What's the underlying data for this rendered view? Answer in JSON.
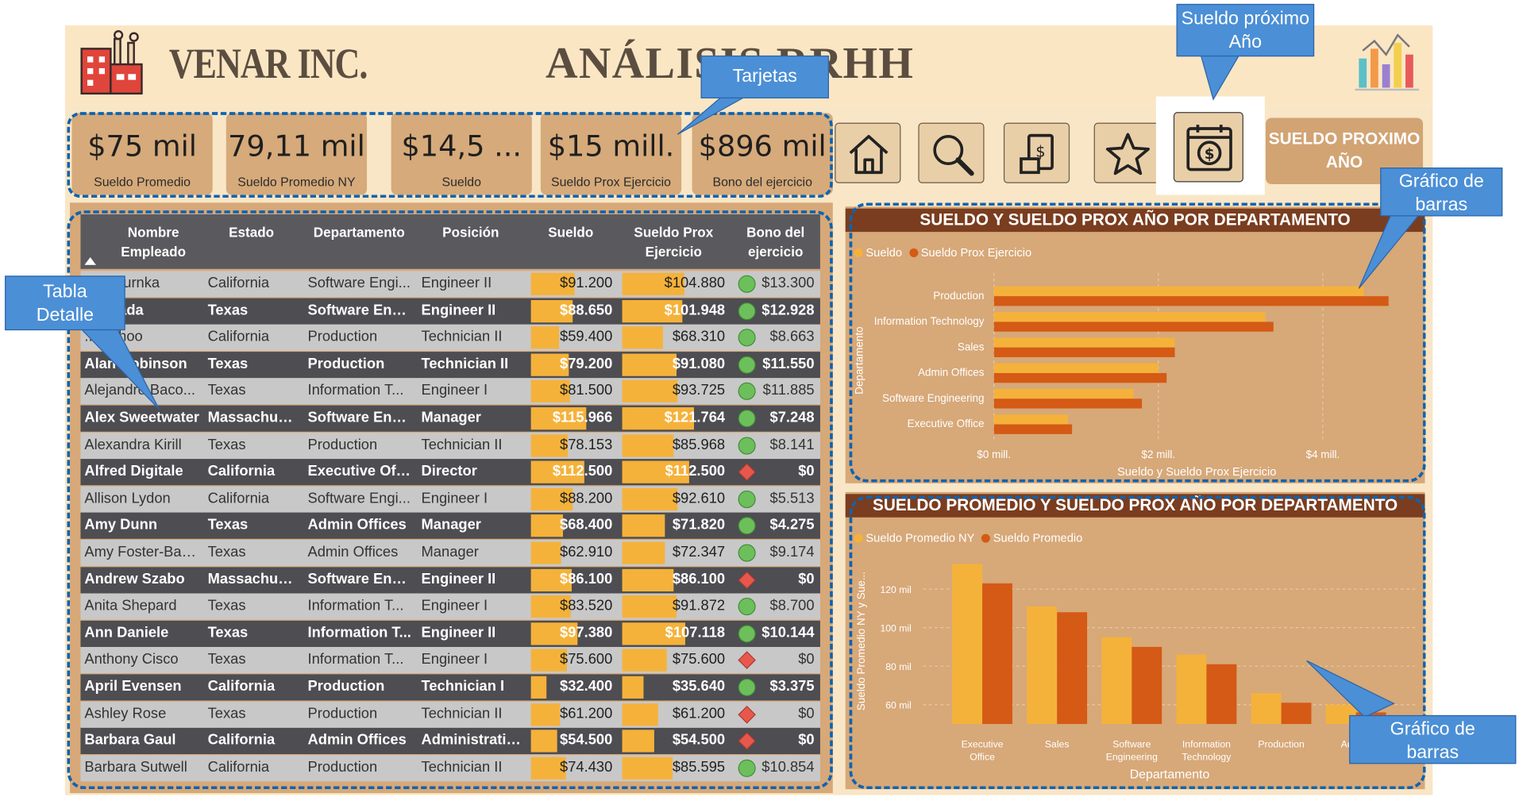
{
  "header": {
    "company": "VENAR INC.",
    "title": "ANÁLISIS   RRHH"
  },
  "cards": [
    {
      "value": "$75 mil",
      "label": "Sueldo Promedio"
    },
    {
      "value": "79,11 mil",
      "label": "Sueldo Promedio NY"
    },
    {
      "value": "$14,5 ...",
      "label": "Sueldo"
    },
    {
      "value": "$15 mill.",
      "label": "Sueldo Prox Ejercicio"
    },
    {
      "value": "$896 mil",
      "label": "Bono del ejercicio"
    }
  ],
  "nav": {
    "icons": [
      "home-icon",
      "search-icon",
      "document-money-icon",
      "star-icon",
      "calendar-dollar-icon"
    ],
    "sueldo_button": "SUELDO PROXIMO AÑO"
  },
  "callouts": {
    "tarjetas": "Tarjetas",
    "sueldo_proximo": "Sueldo próximo Año",
    "tabla": "Tabla Detalle",
    "grafico1": "Gráfico de barras",
    "grafico2": "Gráfico de barras"
  },
  "table": {
    "columns": [
      "Nombre Empleado",
      "Estado",
      "Departamento",
      "Posición",
      "Sueldo",
      "Sueldo Prox Ejercicio",
      "Bono del ejercicio"
    ],
    "rows": [
      {
        "name": "... Osturnka",
        "state": "California",
        "dept": "Software Engi...",
        "pos": "Engineer II",
        "sueldo": "$91.200",
        "sueldo_n": 91200,
        "prox": "$104.880",
        "prox_n": 104880,
        "status": "ok",
        "bono": "$13.300"
      },
      {
        "name": "... Saada",
        "state": "Texas",
        "dept": "Software Engi...",
        "pos": "Engineer II",
        "sueldo": "$88.650",
        "sueldo_n": 88650,
        "prox": "$101.948",
        "prox_n": 101948,
        "status": "ok",
        "bono": "$12.928"
      },
      {
        "name": "... Sahoo",
        "state": "California",
        "dept": "Production",
        "pos": "Technician II",
        "sueldo": "$59.400",
        "sueldo_n": 59400,
        "prox": "$68.310",
        "prox_n": 68310,
        "status": "ok",
        "bono": "$8.663"
      },
      {
        "name": "Alan Robinson",
        "state": "Texas",
        "dept": "Production",
        "pos": "Technician II",
        "sueldo": "$79.200",
        "sueldo_n": 79200,
        "prox": "$91.080",
        "prox_n": 91080,
        "status": "ok",
        "bono": "$11.550"
      },
      {
        "name": "Alejandro Baco...",
        "state": "Texas",
        "dept": "Information T...",
        "pos": "Engineer I",
        "sueldo": "$81.500",
        "sueldo_n": 81500,
        "prox": "$93.725",
        "prox_n": 93725,
        "status": "ok",
        "bono": "$11.885"
      },
      {
        "name": "Alex Sweetwater",
        "state": "Massachuse...",
        "dept": "Software Engi...",
        "pos": "Manager",
        "sueldo": "$115.966",
        "sueldo_n": 115966,
        "prox": "$121.764",
        "prox_n": 121764,
        "status": "ok",
        "bono": "$7.248"
      },
      {
        "name": "Alexandra Kirill",
        "state": "Texas",
        "dept": "Production",
        "pos": "Technician II",
        "sueldo": "$78.153",
        "sueldo_n": 78153,
        "prox": "$85.968",
        "prox_n": 85968,
        "status": "ok",
        "bono": "$8.141"
      },
      {
        "name": "Alfred Digitale",
        "state": "California",
        "dept": "Executive Office",
        "pos": "Director",
        "sueldo": "$112.500",
        "sueldo_n": 112500,
        "prox": "$112.500",
        "prox_n": 112500,
        "status": "bad",
        "bono": "$0"
      },
      {
        "name": "Allison Lydon",
        "state": "California",
        "dept": "Software Engi...",
        "pos": "Engineer I",
        "sueldo": "$88.200",
        "sueldo_n": 88200,
        "prox": "$92.610",
        "prox_n": 92610,
        "status": "ok",
        "bono": "$5.513"
      },
      {
        "name": "Amy Dunn",
        "state": "Texas",
        "dept": "Admin Offices",
        "pos": "Manager",
        "sueldo": "$68.400",
        "sueldo_n": 68400,
        "prox": "$71.820",
        "prox_n": 71820,
        "status": "ok",
        "bono": "$4.275"
      },
      {
        "name": "Amy Foster-Bak...",
        "state": "Texas",
        "dept": "Admin Offices",
        "pos": "Manager",
        "sueldo": "$62.910",
        "sueldo_n": 62910,
        "prox": "$72.347",
        "prox_n": 72347,
        "status": "ok",
        "bono": "$9.174"
      },
      {
        "name": "Andrew Szabo",
        "state": "Massachuse...",
        "dept": "Software Engi...",
        "pos": "Engineer II",
        "sueldo": "$86.100",
        "sueldo_n": 86100,
        "prox": "$86.100",
        "prox_n": 86100,
        "status": "bad",
        "bono": "$0"
      },
      {
        "name": "Anita Shepard",
        "state": "Texas",
        "dept": "Information T...",
        "pos": "Engineer I",
        "sueldo": "$83.520",
        "sueldo_n": 83520,
        "prox": "$91.872",
        "prox_n": 91872,
        "status": "ok",
        "bono": "$8.700"
      },
      {
        "name": "Ann Daniele",
        "state": "Texas",
        "dept": "Information T...",
        "pos": "Engineer II",
        "sueldo": "$97.380",
        "sueldo_n": 97380,
        "prox": "$107.118",
        "prox_n": 107118,
        "status": "ok",
        "bono": "$10.144"
      },
      {
        "name": "Anthony Cisco",
        "state": "Texas",
        "dept": "Information T...",
        "pos": "Engineer I",
        "sueldo": "$75.600",
        "sueldo_n": 75600,
        "prox": "$75.600",
        "prox_n": 75600,
        "status": "bad",
        "bono": "$0"
      },
      {
        "name": "April Evensen",
        "state": "California",
        "dept": "Production",
        "pos": "Technician I",
        "sueldo": "$32.400",
        "sueldo_n": 32400,
        "prox": "$35.640",
        "prox_n": 35640,
        "status": "ok",
        "bono": "$3.375"
      },
      {
        "name": "Ashley Rose",
        "state": "Texas",
        "dept": "Production",
        "pos": "Technician II",
        "sueldo": "$61.200",
        "sueldo_n": 61200,
        "prox": "$61.200",
        "prox_n": 61200,
        "status": "bad",
        "bono": "$0"
      },
      {
        "name": "Barbara Gaul",
        "state": "California",
        "dept": "Admin Offices",
        "pos": "Administrativ...",
        "sueldo": "$54.500",
        "sueldo_n": 54500,
        "prox": "$54.500",
        "prox_n": 54500,
        "status": "bad",
        "bono": "$0"
      },
      {
        "name": "Barbara Sutwell",
        "state": "California",
        "dept": "Production",
        "pos": "Technician II",
        "sueldo": "$74.430",
        "sueldo_n": 74430,
        "prox": "$85.595",
        "prox_n": 85595,
        "status": "ok",
        "bono": "$10.854"
      }
    ],
    "max_value": 180000
  },
  "chart_data": [
    {
      "type": "bar",
      "orientation": "horizontal",
      "title": "SUELDO Y SUELDO PROX AÑO POR DEPARTAMENTO",
      "xlabel": "Sueldo y Sueldo Prox Ejercicio",
      "ylabel": "Departamento",
      "categories": [
        "Production",
        "Information Technology",
        "Sales",
        "Admin Offices",
        "Software Engineering",
        "Executive Office"
      ],
      "series": [
        {
          "name": "Sueldo",
          "color": "#f5b23a",
          "values": [
            4.5,
            3.3,
            2.2,
            2.0,
            1.7,
            0.9
          ]
        },
        {
          "name": "Sueldo Prox Ejercicio",
          "color": "#d45a15",
          "values": [
            4.8,
            3.4,
            2.2,
            2.1,
            1.8,
            0.95
          ]
        }
      ],
      "xticks": [
        "$0 mill.",
        "$2 mill.",
        "$4 mill."
      ],
      "xtick_values": [
        0,
        2,
        4
      ],
      "xlim": [
        0,
        5.1
      ],
      "legend": "top-left"
    },
    {
      "type": "bar",
      "title": "SUELDO PROMEDIO Y SUELDO PROX AÑO POR DEPARTAMENTO",
      "xlabel": "Departamento",
      "ylabel": "Sueldo Promedio NY y Sue...",
      "categories": [
        "Executive Office",
        "Sales",
        "Software Engineering",
        "Information Technology",
        "Production",
        "Admi..."
      ],
      "series": [
        {
          "name": "Sueldo Promedio NY",
          "color": "#f5b23a",
          "values": [
            133,
            111,
            95,
            86,
            66,
            60
          ]
        },
        {
          "name": "Sueldo Promedio",
          "color": "#d45a15",
          "values": [
            123,
            108,
            90,
            81,
            61,
            56
          ]
        }
      ],
      "yticks": [
        "60 mil",
        "80 mil",
        "100 mil",
        "120 mil"
      ],
      "ytick_values": [
        60,
        80,
        100,
        120
      ],
      "ylim": [
        50,
        135
      ],
      "legend": "top-left"
    }
  ]
}
